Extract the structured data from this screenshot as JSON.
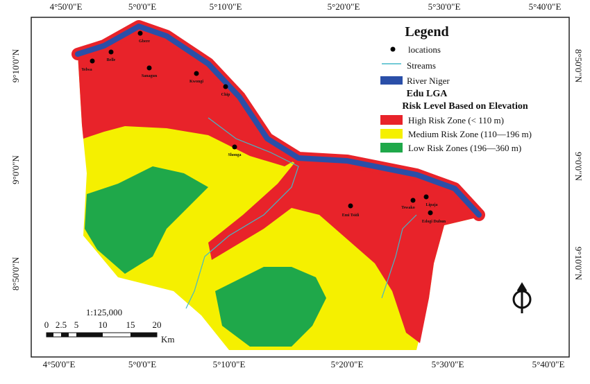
{
  "coords": {
    "top": [
      "4°50'0\"E",
      "5°0'0\"E",
      "5°10'0\"E",
      "5°20'0\"E",
      "5°30'0\"E",
      "5°40'0\"E"
    ],
    "bottom": [
      "4°50'0\"E",
      "5°0'0\"E",
      "5°10'0\"E",
      "5°20'0\"E",
      "5°30'0\"E",
      "5°40'0\"E"
    ],
    "left": [
      "9°10'0\"N",
      "9°0'0\"N",
      "8°50'0\"N"
    ],
    "right": [
      "8°50'0\"N",
      "9°0'0\"N",
      "9°10'0\"N"
    ]
  },
  "legend": {
    "title": "Legend",
    "locations": "locations",
    "streams": "Streams",
    "river": "River Niger",
    "area": "Edu LGA",
    "subtitle": "Risk Level Based on Elevation",
    "high": "High Risk Zone (< 110 m)",
    "medium": "Medium Risk Zone (110—196 m)",
    "low": "Low Risk Zones (196—360 m)"
  },
  "scale": {
    "ratio": "1:125,000",
    "ticks": [
      "0",
      "2.5",
      "5",
      "10",
      "15",
      "20"
    ],
    "unit": "Km"
  },
  "locations": [
    "Yelwa",
    "Belle",
    "Gbere",
    "Sanagun",
    "Kwongi",
    "Chip",
    "Shonga",
    "Emi Tsidi",
    "Tswako",
    "Lipaja",
    "Edogi Dubun"
  ]
}
